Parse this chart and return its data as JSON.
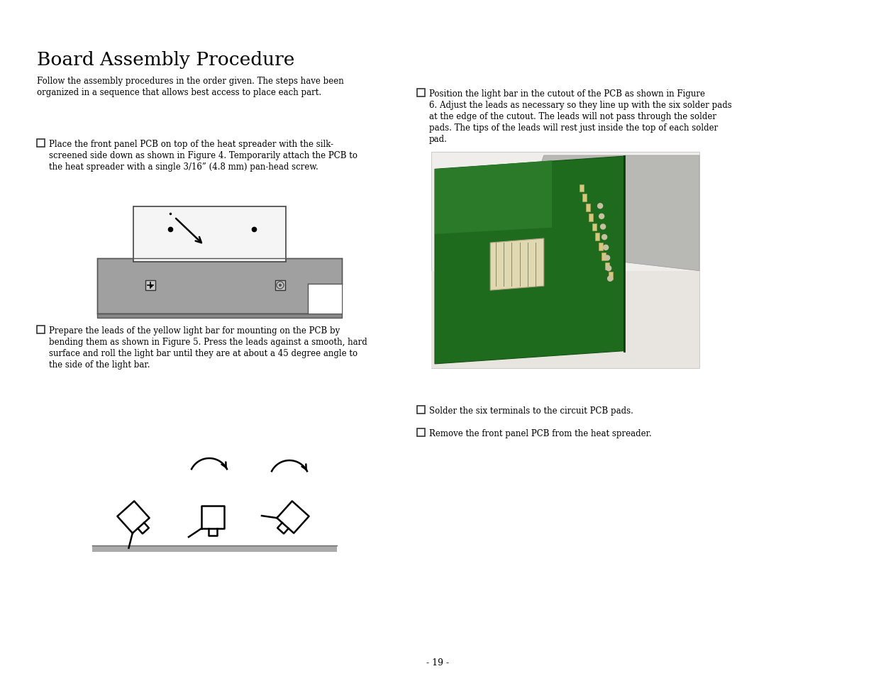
{
  "title": "Board Assembly Procedure",
  "bg_color": "#ffffff",
  "text_color": "#000000",
  "page_number": "- 19 -",
  "intro_line1": "Follow the assembly procedures in the order given. The steps have been",
  "intro_line2": "organized in a sequence that allows best access to place each part.",
  "step1_line1": "Place the front panel PCB on top of the heat spreader with the silk-",
  "step1_line2": "screened side down as shown in Figure 4. Temporarily attach the PCB to",
  "step1_line3": "the heat spreader with a single 3/16” (4.8 mm) pan-head screw.",
  "step2_line1": "Prepare the leads of the yellow light bar for mounting on the PCB by",
  "step2_line2": "bending them as shown in Figure 5. Press the leads against a smooth, hard",
  "step2_line3": "surface and roll the light bar until they are at about a 45 degree angle to",
  "step2_line4": "the side of the light bar.",
  "step3_line1": "Position the light bar in the cutout of the PCB as shown in Figure",
  "step3_line2": "6. Adjust the leads as necessary so they line up with the six solder pads",
  "step3_line3": "at the edge of the cutout. The leads will not pass through the solder",
  "step3_line4": "pads. The tips of the leads will rest just inside the top of each solder",
  "step3_line5": "pad.",
  "step4_text": "Solder the six terminals to the circuit PCB pads.",
  "step5_text": "Remove the front panel PCB from the heat spreader."
}
